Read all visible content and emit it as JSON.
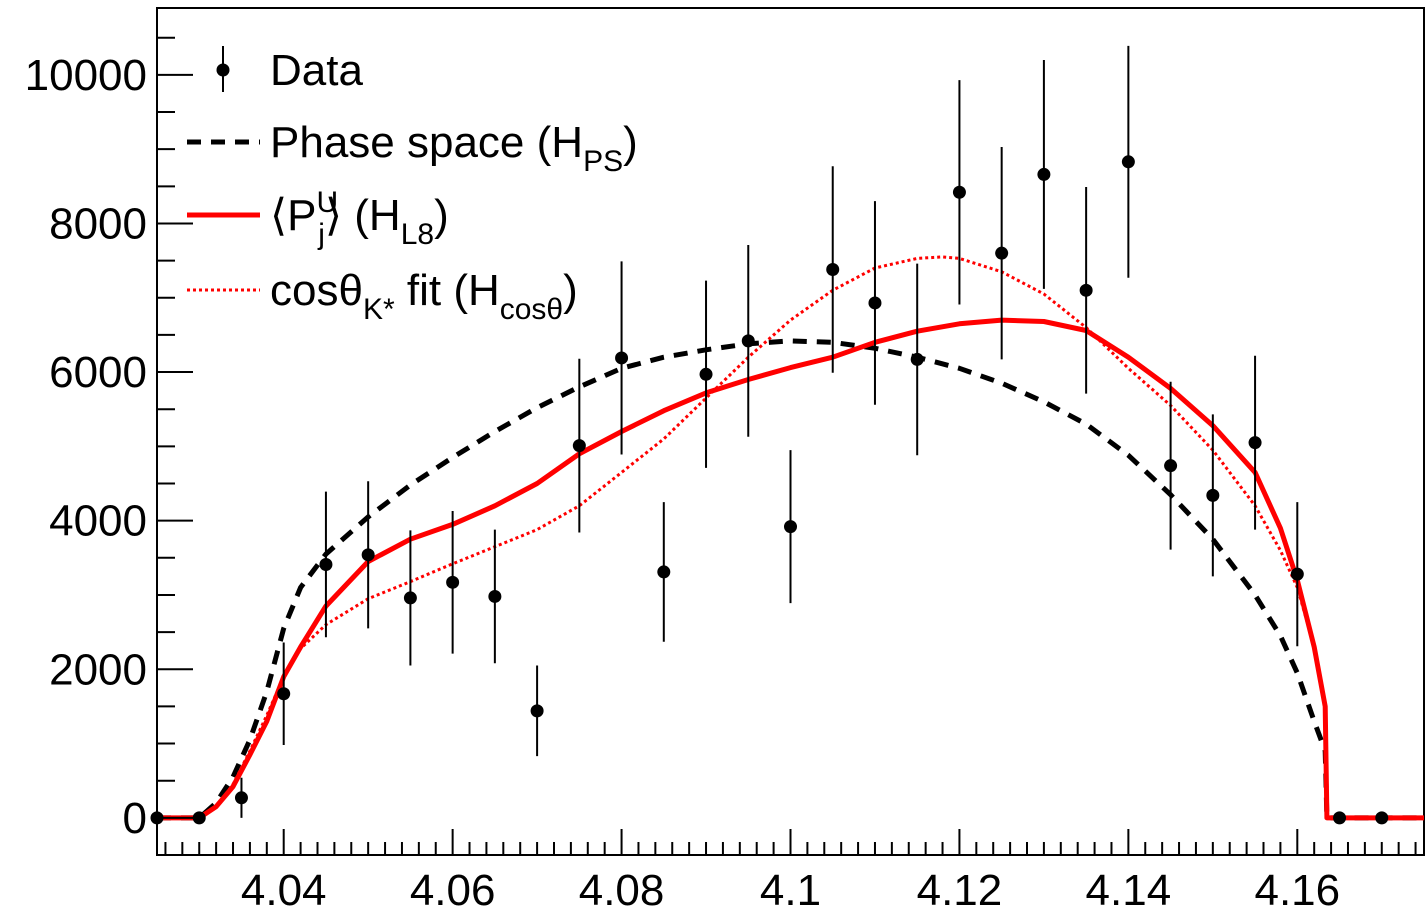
{
  "chart_data": {
    "type": "line",
    "title": "",
    "xlabel": "",
    "ylabel": "",
    "xlim": [
      4.025,
      4.175
    ],
    "ylim": [
      -500,
      10900
    ],
    "grid": false,
    "legend_position": "top-left",
    "x_tick_labels": [
      "4.04",
      "4.06",
      "4.08",
      "4.1",
      "4.12",
      "4.14",
      "4.16"
    ],
    "x_ticks": [
      4.04,
      4.06,
      4.08,
      4.1,
      4.12,
      4.14,
      4.16
    ],
    "y_tick_labels": [
      "0",
      "2000",
      "4000",
      "6000",
      "8000",
      "10000"
    ],
    "y_ticks": [
      0,
      2000,
      4000,
      6000,
      8000,
      10000
    ],
    "legend": [
      {
        "id": "data",
        "label": "Data",
        "style": "marker"
      },
      {
        "id": "ps",
        "label": "Phase space (H",
        "sub": "PS",
        "tail": ")",
        "style": "dashed",
        "color": "#000000"
      },
      {
        "id": "l8",
        "label": "⟨P",
        "sup": "U",
        "sub": "j",
        "label2": "⟩ (H",
        "sub2": "L8",
        "tail": ")",
        "style": "solid",
        "color": "#ff0000"
      },
      {
        "id": "cos",
        "label": "cosθ",
        "sub": "K*",
        "label2": " fit (H",
        "sub2": "cosθ",
        "tail": ")",
        "style": "dotted",
        "color": "#ff0000"
      }
    ],
    "series": [
      {
        "id": "data",
        "type": "scatter",
        "color": "#000000",
        "x": [
          4.025,
          4.03,
          4.035,
          4.04,
          4.045,
          4.05,
          4.055,
          4.06,
          4.065,
          4.07,
          4.075,
          4.08,
          4.085,
          4.09,
          4.095,
          4.1,
          4.105,
          4.11,
          4.115,
          4.12,
          4.125,
          4.13,
          4.135,
          4.14,
          4.145,
          4.15,
          4.155,
          4.16,
          4.165,
          4.17
        ],
        "y": [
          0,
          0,
          270,
          1670,
          3410,
          3540,
          2960,
          3170,
          2980,
          1440,
          5010,
          6190,
          3310,
          5970,
          6420,
          3920,
          7380,
          6930,
          6170,
          8420,
          7600,
          8660,
          7100,
          8830,
          4740,
          4340,
          5050,
          3280,
          0,
          0
        ],
        "err": [
          0,
          0,
          270,
          690,
          980,
          990,
          910,
          960,
          900,
          610,
          1170,
          1300,
          940,
          1260,
          1290,
          1030,
          1390,
          1370,
          1290,
          1510,
          1430,
          1540,
          1390,
          1560,
          1130,
          1090,
          1170,
          970,
          0,
          0
        ]
      },
      {
        "id": "ps",
        "type": "line",
        "name": "Phase space (H_PS)",
        "color": "#000000",
        "style": "dashed",
        "x": [
          4.025,
          4.03,
          4.032,
          4.034,
          4.036,
          4.038,
          4.04,
          4.042,
          4.045,
          4.05,
          4.055,
          4.06,
          4.065,
          4.07,
          4.075,
          4.08,
          4.085,
          4.09,
          4.095,
          4.1,
          4.105,
          4.11,
          4.115,
          4.12,
          4.125,
          4.13,
          4.135,
          4.14,
          4.145,
          4.15,
          4.155,
          4.158,
          4.16,
          4.162,
          4.1633,
          4.1635,
          4.175
        ],
        "y": [
          0,
          0,
          200,
          550,
          1050,
          1700,
          2550,
          3100,
          3550,
          4050,
          4480,
          4850,
          5200,
          5520,
          5800,
          6050,
          6200,
          6300,
          6380,
          6420,
          6400,
          6320,
          6200,
          6050,
          5850,
          5600,
          5300,
          4880,
          4350,
          3750,
          3000,
          2450,
          1950,
          1300,
          900,
          0,
          0
        ]
      },
      {
        "id": "l8",
        "type": "line",
        "name": "<P_j^U> (H_L8)",
        "color": "#ff0000",
        "style": "solid",
        "x": [
          4.025,
          4.03,
          4.032,
          4.034,
          4.036,
          4.038,
          4.04,
          4.042,
          4.045,
          4.05,
          4.055,
          4.06,
          4.065,
          4.07,
          4.075,
          4.08,
          4.085,
          4.09,
          4.095,
          4.1,
          4.105,
          4.11,
          4.115,
          4.12,
          4.125,
          4.13,
          4.135,
          4.14,
          4.145,
          4.15,
          4.155,
          4.158,
          4.16,
          4.162,
          4.1633,
          4.1635,
          4.175
        ],
        "y": [
          0,
          0,
          150,
          420,
          850,
          1300,
          1900,
          2300,
          2850,
          3450,
          3750,
          3950,
          4200,
          4500,
          4900,
          5200,
          5480,
          5720,
          5900,
          6060,
          6200,
          6400,
          6550,
          6650,
          6700,
          6680,
          6560,
          6200,
          5780,
          5280,
          4650,
          3900,
          3200,
          2300,
          1500,
          0,
          0
        ]
      },
      {
        "id": "cos",
        "type": "line",
        "name": "cosθ_K* fit (H_cosθ)",
        "color": "#ff0000",
        "style": "dotted",
        "x": [
          4.025,
          4.03,
          4.032,
          4.034,
          4.036,
          4.038,
          4.04,
          4.042,
          4.045,
          4.05,
          4.055,
          4.06,
          4.065,
          4.07,
          4.075,
          4.08,
          4.085,
          4.09,
          4.095,
          4.1,
          4.105,
          4.11,
          4.115,
          4.118,
          4.12,
          4.125,
          4.13,
          4.135,
          4.14,
          4.145,
          4.15,
          4.155,
          4.158,
          4.16,
          4.162,
          4.1633,
          4.1635,
          4.175
        ],
        "y": [
          0,
          0,
          150,
          450,
          900,
          1380,
          1900,
          2280,
          2600,
          2950,
          3180,
          3420,
          3650,
          3880,
          4200,
          4650,
          5100,
          5650,
          6200,
          6700,
          7100,
          7400,
          7530,
          7550,
          7530,
          7350,
          7050,
          6600,
          6050,
          5550,
          4950,
          4200,
          3600,
          3100,
          2300,
          1500,
          0,
          0
        ]
      }
    ]
  }
}
